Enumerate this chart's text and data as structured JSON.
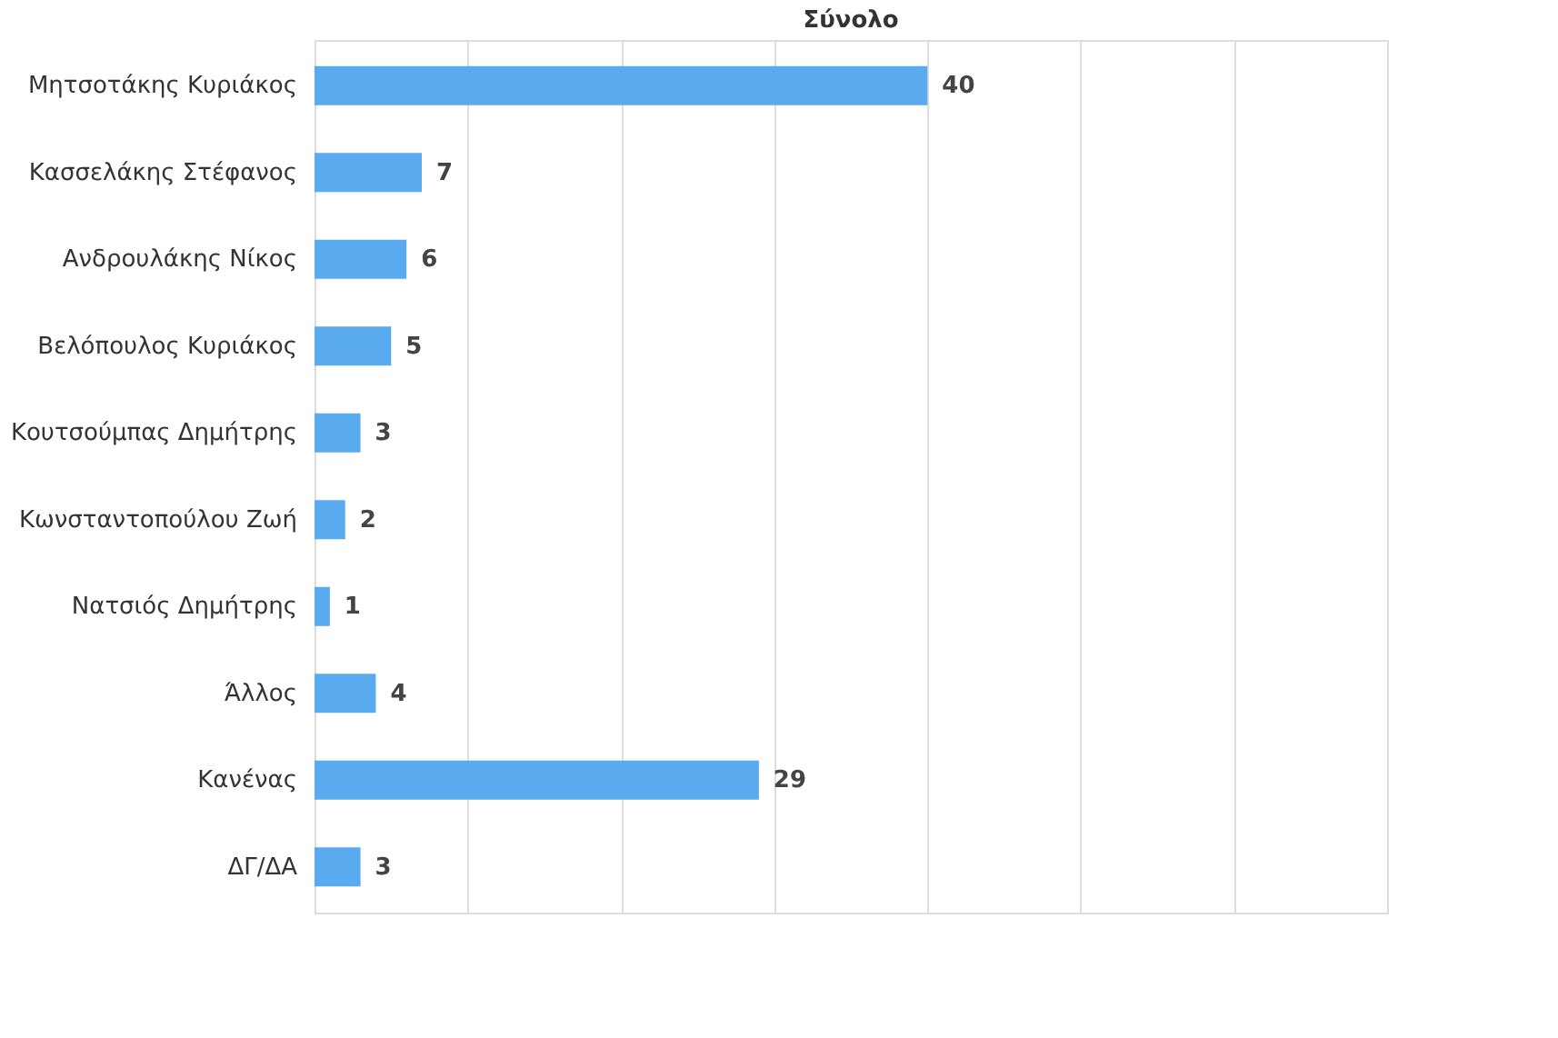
{
  "chart_data": {
    "type": "bar",
    "orientation": "horizontal",
    "title": "Σύνολο",
    "categories": [
      "Μητσοτάκης Κυριάκος",
      "Κασσελάκης Στέφανος",
      "Ανδρουλάκης Νίκος",
      "Βελόπουλος Κυριάκος",
      "Κουτσούμπας Δημήτρης",
      "Κωνσταντοπούλου Ζωή",
      "Νατσιός Δημήτρης",
      "Άλλος",
      "Κανένας",
      "ΔΓ/ΔΑ"
    ],
    "values": [
      40,
      7,
      6,
      5,
      3,
      2,
      1,
      4,
      29,
      3
    ],
    "color": "#5aaaf0",
    "data_labels": true,
    "xlim": [
      0,
      70
    ],
    "xticks": [
      {
        "value": 0,
        "label": null
      },
      {
        "value": 10,
        "label": null
      },
      {
        "value": 20,
        "label": null
      },
      {
        "value": 30,
        "label": null
      },
      {
        "value": 40,
        "label": null
      },
      {
        "value": 50,
        "label": null
      },
      {
        "value": 60,
        "label": null
      },
      {
        "value": 70,
        "label": null
      }
    ],
    "grid": "x",
    "tick_labels": "y"
  }
}
